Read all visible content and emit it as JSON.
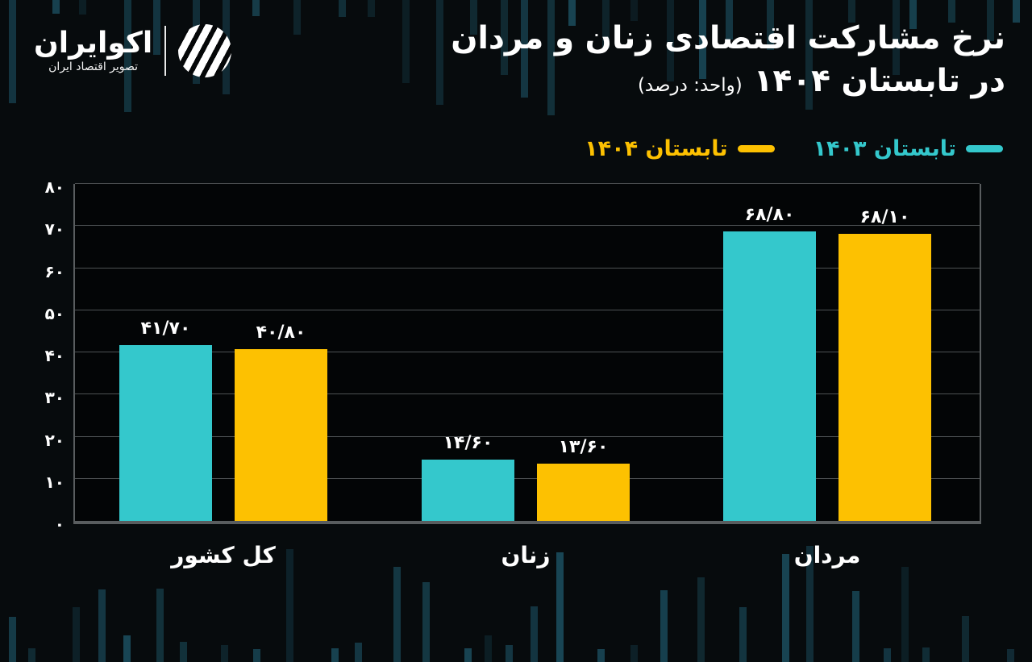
{
  "logo": {
    "name": "اکوایران",
    "tagline": "تصویر اقتصاد ایران"
  },
  "title": {
    "line1": "نرخ مشارکت اقتصادی زنان و مردان",
    "line2": "در تابستان ۱۴۰۴",
    "unit_note": "(واحد: درصد)"
  },
  "legend": [
    {
      "label": "تابستان ۱۴۰۳",
      "color": "#34c8cc"
    },
    {
      "label": "تابستان ۱۴۰۴",
      "color": "#fdc101"
    }
  ],
  "colors": {
    "background": "#070b0d",
    "plot_background": "#030506",
    "gridline": "#4d5153",
    "axis": "#595d5f",
    "series_1403": "#34c8cc",
    "series_1404": "#fdc101",
    "text": "#ffffff",
    "decor_bar": "#2a7e99"
  },
  "chart_data": {
    "type": "bar",
    "title": "نرخ مشارکت اقتصادی زنان و مردان در تابستان ۱۴۰۴",
    "unit": "درصد",
    "direction": "rtl",
    "grid": true,
    "legend_position": "top-right",
    "categories": [
      "کل کشور",
      "زنان",
      "مردان"
    ],
    "series": [
      {
        "name": "تابستان ۱۴۰۳",
        "color": "#34c8cc",
        "values": [
          41.7,
          14.6,
          68.8
        ],
        "value_labels": [
          "۴۱/۷۰",
          "۱۴/۶۰",
          "۶۸/۸۰"
        ]
      },
      {
        "name": "تابستان ۱۴۰۴",
        "color": "#fdc101",
        "values": [
          40.8,
          13.6,
          68.1
        ],
        "value_labels": [
          "۴۰/۸۰",
          "۱۳/۶۰",
          "۶۸/۱۰"
        ]
      }
    ],
    "ylim": [
      0,
      80
    ],
    "yticks": [
      0,
      10,
      20,
      30,
      40,
      50,
      60,
      70,
      80
    ],
    "ytick_labels": [
      "۰",
      "۱۰",
      "۲۰",
      "۳۰",
      "۴۰",
      "۵۰",
      "۶۰",
      "۷۰",
      "۸۰"
    ]
  }
}
